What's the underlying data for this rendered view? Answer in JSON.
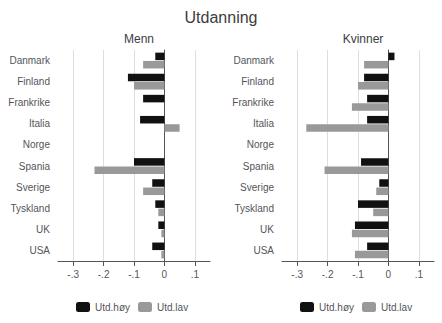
{
  "title": "Utdanning",
  "chart_data": [
    {
      "type": "bar",
      "orientation": "horizontal",
      "title": "Menn",
      "categories": [
        "Danmark",
        "Finland",
        "Frankrike",
        "Italia",
        "Norge",
        "Spania",
        "Sverige",
        "Tyskland",
        "UK",
        "USA"
      ],
      "series": [
        {
          "name": "Utd.høy",
          "color": "#111111",
          "values": [
            -0.03,
            -0.12,
            -0.07,
            -0.08,
            0.0,
            -0.1,
            -0.04,
            -0.03,
            -0.02,
            -0.04
          ]
        },
        {
          "name": "Utd.lav",
          "color": "#999999",
          "values": [
            -0.07,
            -0.1,
            0.0,
            0.05,
            0.0,
            -0.23,
            -0.07,
            -0.02,
            -0.01,
            -0.01
          ]
        }
      ],
      "xlim": [
        -0.35,
        0.15
      ],
      "xticks": [
        {
          "value": -0.3,
          "label": "-.3"
        },
        {
          "value": -0.2,
          "label": "-.2"
        },
        {
          "value": -0.1,
          "label": "-.1"
        },
        0,
        {
          "value": 0.1,
          "label": ".1"
        }
      ],
      "grid": true,
      "legend": "bottom"
    },
    {
      "type": "bar",
      "orientation": "horizontal",
      "title": "Kvinner",
      "categories": [
        "Danmark",
        "Finland",
        "Frankrike",
        "Italia",
        "Norge",
        "Spania",
        "Sverige",
        "Tyskland",
        "UK",
        "USA"
      ],
      "series": [
        {
          "name": "Utd.høy",
          "color": "#111111",
          "values": [
            0.02,
            -0.08,
            -0.07,
            -0.07,
            0.0,
            -0.09,
            -0.03,
            -0.1,
            -0.11,
            -0.07
          ]
        },
        {
          "name": "Utd.lav",
          "color": "#999999",
          "values": [
            -0.08,
            -0.1,
            -0.12,
            -0.27,
            0.0,
            -0.21,
            -0.04,
            -0.05,
            -0.12,
            -0.11
          ]
        }
      ],
      "xlim": [
        -0.35,
        0.15
      ],
      "xticks": [
        {
          "value": -0.3,
          "label": "-.3"
        },
        {
          "value": -0.2,
          "label": "-.2"
        },
        {
          "value": -0.1,
          "label": "-.1"
        },
        0,
        {
          "value": 0.1,
          "label": ".1"
        }
      ],
      "grid": true,
      "legend": "bottom"
    }
  ]
}
